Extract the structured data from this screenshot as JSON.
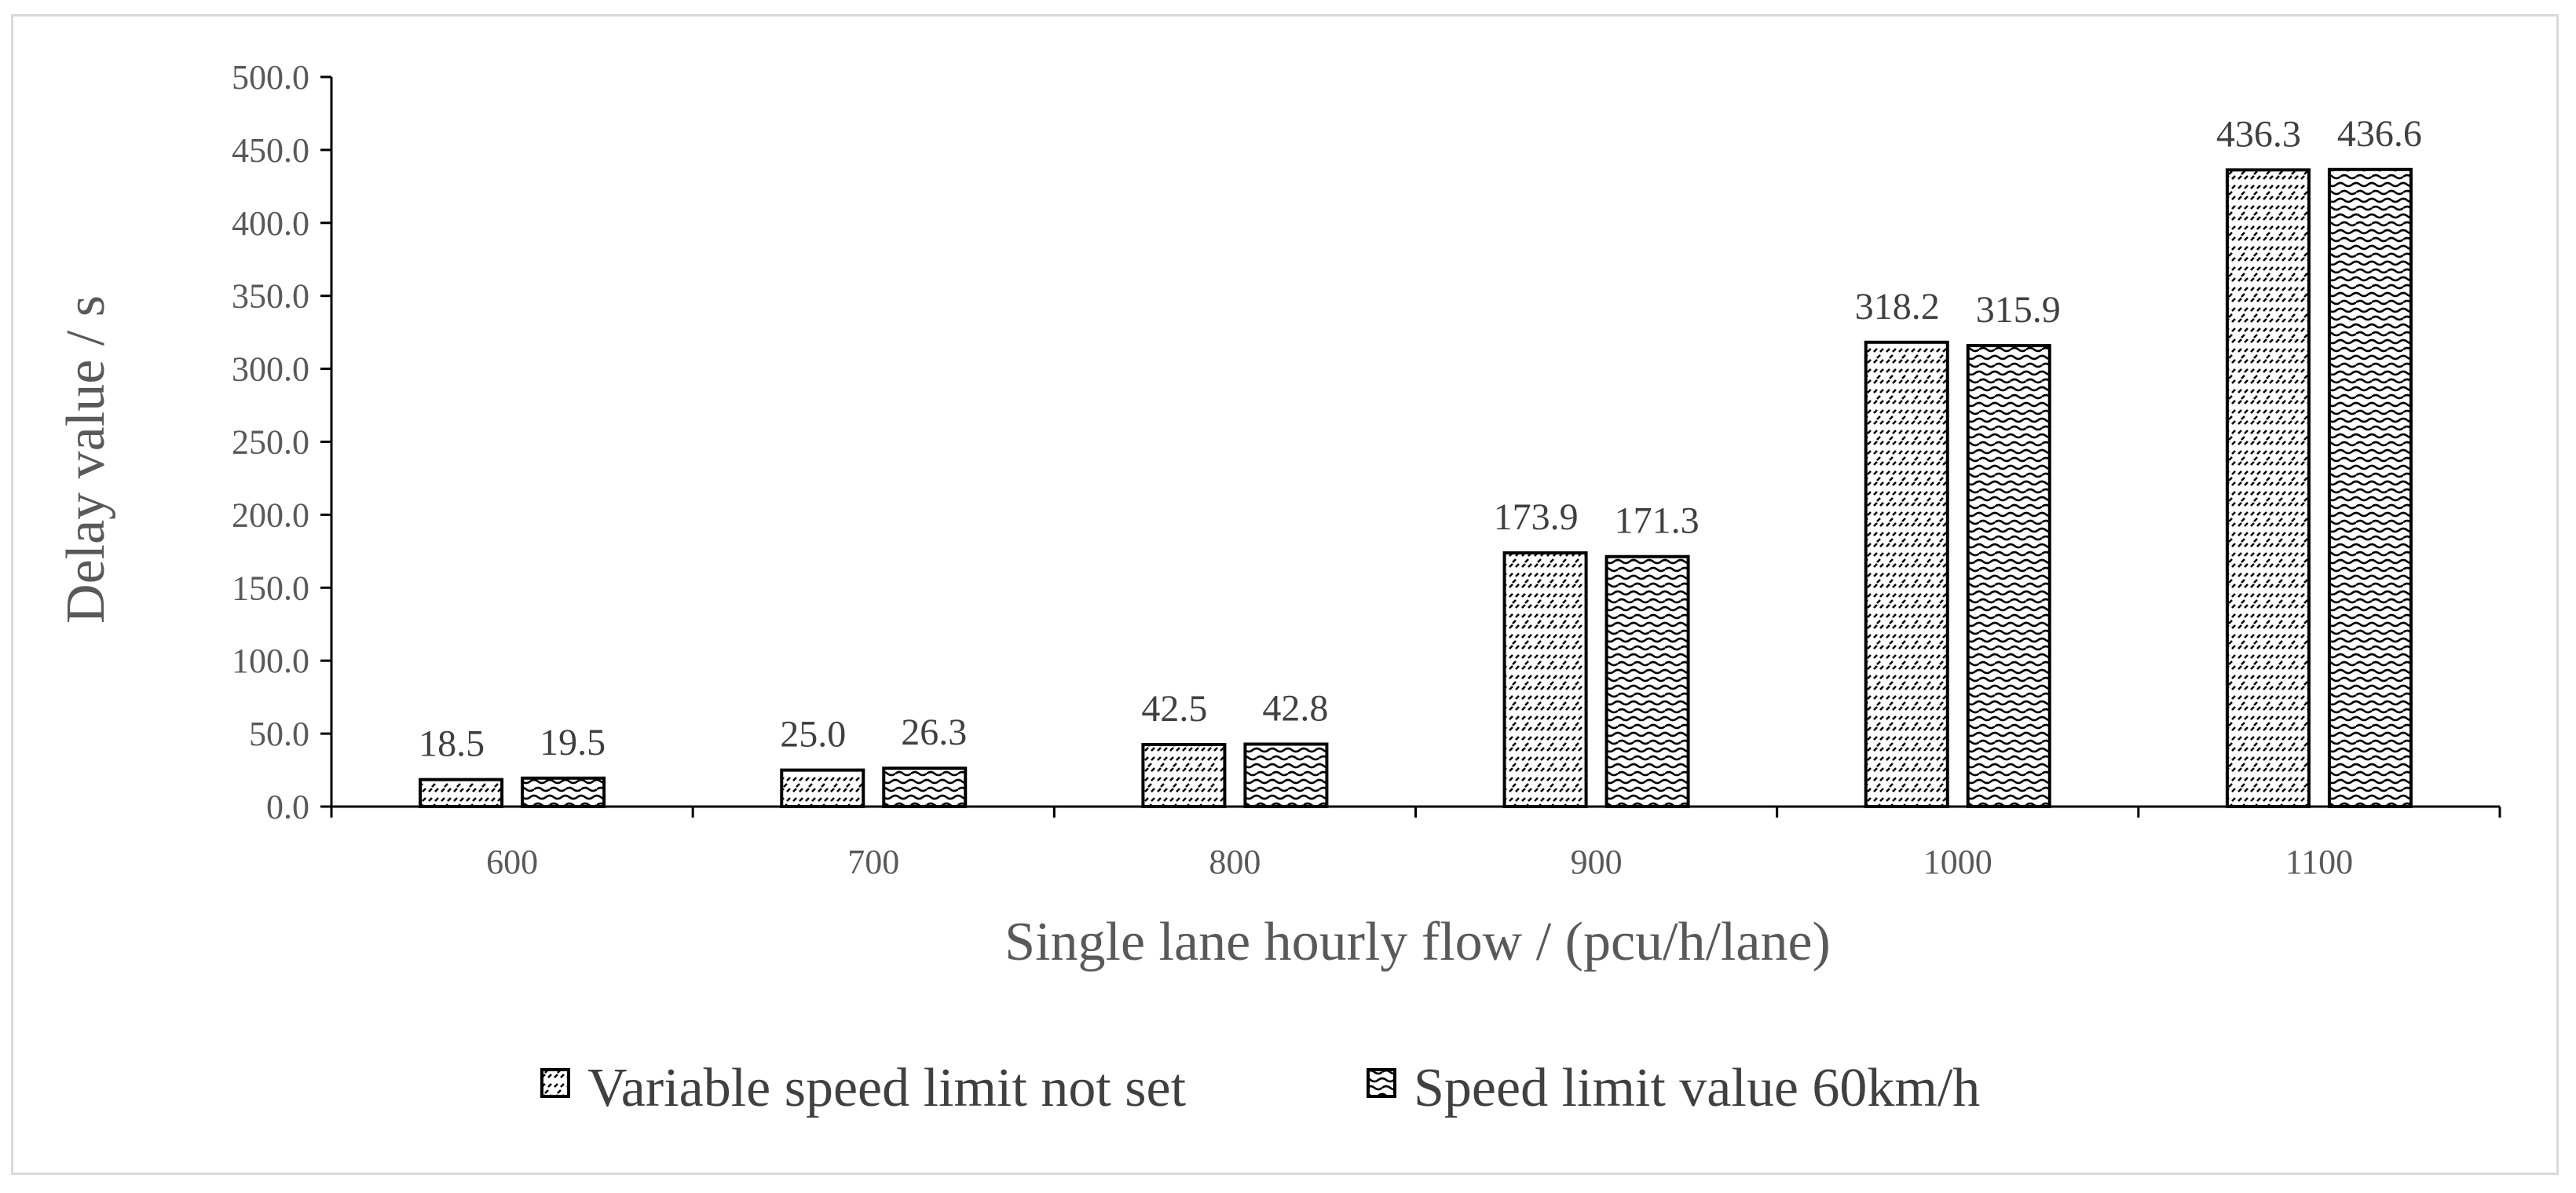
{
  "chart_data": {
    "type": "bar",
    "categories": [
      "600",
      "700",
      "800",
      "900",
      "1000",
      "1100"
    ],
    "series": [
      {
        "name": "Variable speed limit not set",
        "values": [
          18.5,
          25.0,
          42.5,
          173.9,
          318.2,
          436.3
        ],
        "labels": [
          "18.5",
          "25.0",
          "42.5",
          "173.9",
          "318.2",
          "436.3"
        ],
        "pattern": "diagonal-hatch"
      },
      {
        "name": "Speed limit value 60km/h",
        "values": [
          19.5,
          26.3,
          42.8,
          171.3,
          315.9,
          436.6
        ],
        "labels": [
          "19.5",
          "26.3",
          "42.8",
          "171.3",
          "315.9",
          "436.6"
        ],
        "pattern": "wave-dots"
      }
    ],
    "xlabel": "Single lane hourly flow / (pcu/h/lane)",
    "ylabel": "Delay value / s",
    "ylim": [
      0,
      500
    ],
    "yticks": [
      0,
      50,
      100,
      150,
      200,
      250,
      300,
      350,
      400,
      450,
      500
    ],
    "ytick_labels": [
      "0.0",
      "50.0",
      "100.0",
      "150.0",
      "200.0",
      "250.0",
      "300.0",
      "350.0",
      "400.0",
      "450.0",
      "500.0"
    ],
    "grid": false,
    "legend_position": "bottom",
    "colors": {
      "bar_stroke": "#000000",
      "axis": "#000000",
      "text": "#595959",
      "frame": "#d9d9d9"
    }
  }
}
